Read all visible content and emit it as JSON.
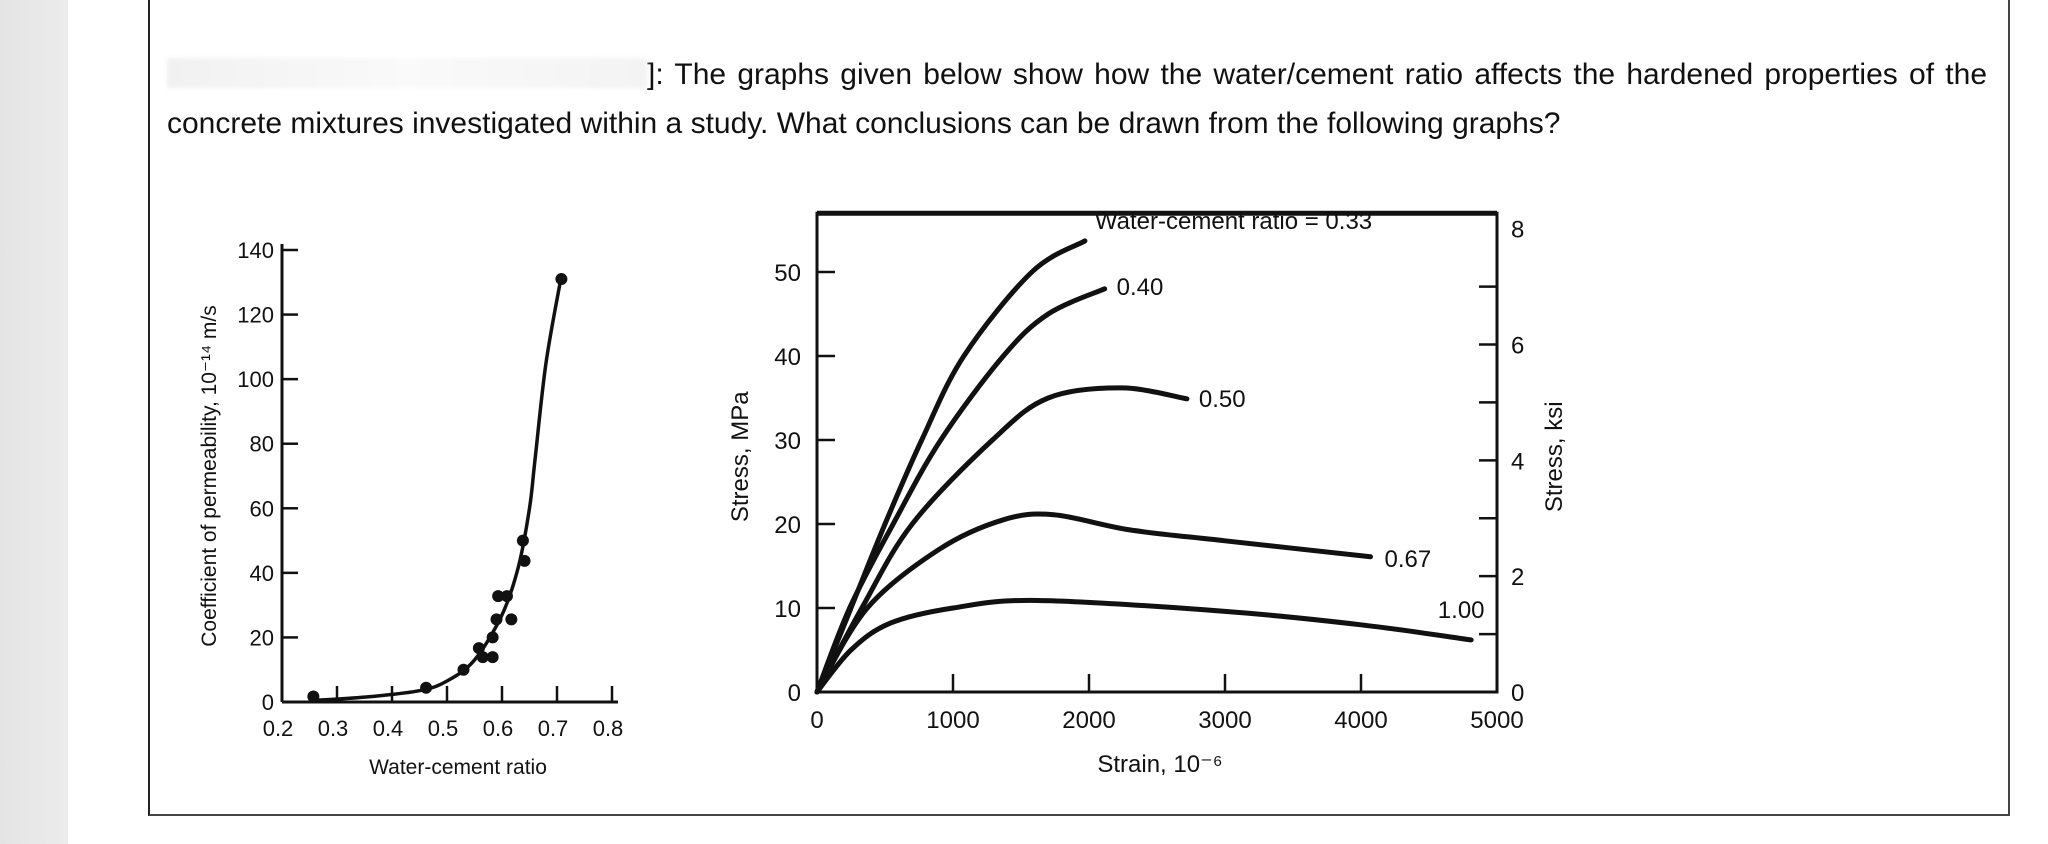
{
  "question": {
    "label_redacted": true,
    "text_line": "]: The graphs given below show how the water/cement ratio affects the hardened properties of the concrete mixtures investigated within a study. What conclusions can be drawn from the following graphs?"
  },
  "chart_data": [
    {
      "type": "scatter",
      "title": "",
      "xlabel": "Water-cement ratio",
      "ylabel": "Coefficient of permeability, 10⁻¹⁴ m/s",
      "xlim": [
        0.2,
        0.8
      ],
      "ylim": [
        0,
        140
      ],
      "x_ticks": [
        "0.2",
        "0.3",
        "0.4",
        "0.5",
        "0.6",
        "0.7",
        "0.8"
      ],
      "y_ticks": [
        "0",
        "20",
        "40",
        "60",
        "80",
        "100",
        "120",
        "140"
      ],
      "grid": false,
      "points": [
        [
          0.257,
          1.7
        ],
        [
          0.462,
          4.4
        ],
        [
          0.53,
          10
        ],
        [
          0.558,
          16.7
        ],
        [
          0.565,
          13.9
        ],
        [
          0.583,
          13.9
        ],
        [
          0.583,
          20
        ],
        [
          0.59,
          25.6
        ],
        [
          0.593,
          32.8
        ],
        [
          0.609,
          32.8
        ],
        [
          0.617,
          25.6
        ],
        [
          0.638,
          50
        ],
        [
          0.641,
          43.7
        ],
        [
          0.708,
          131
        ]
      ],
      "fit_curve": [
        [
          0.257,
          0.5
        ],
        [
          0.35,
          1.5
        ],
        [
          0.45,
          3.5
        ],
        [
          0.5,
          6.5
        ],
        [
          0.55,
          13
        ],
        [
          0.6,
          27
        ],
        [
          0.63,
          42
        ],
        [
          0.65,
          60
        ],
        [
          0.66,
          75
        ],
        [
          0.68,
          105
        ],
        [
          0.708,
          132
        ]
      ]
    },
    {
      "type": "line",
      "title": "",
      "xlabel": "Strain, 10⁻⁶",
      "ylabel": "Stress, MPa",
      "ylabel_right": "Stress, ksi",
      "xlim": [
        0,
        5000
      ],
      "ylim": [
        0,
        57
      ],
      "ylim_right": [
        0,
        8
      ],
      "x_ticks": [
        "0",
        "1000",
        "2000",
        "3000",
        "4000",
        "5000"
      ],
      "y_ticks": [
        "0",
        "10",
        "20",
        "30",
        "40",
        "50"
      ],
      "y_ticks_right": [
        "0",
        "2",
        "4",
        "6",
        "8"
      ],
      "grid": false,
      "series": [
        {
          "name": "Water-cement ratio = 0.33",
          "points": [
            [
              0,
              0
            ],
            [
              250,
              10
            ],
            [
              500,
              20
            ],
            [
              770,
              30
            ],
            [
              1080,
              40
            ],
            [
              1580,
              50
            ],
            [
              1970,
              53.7
            ]
          ]
        },
        {
          "name": "0.40",
          "points": [
            [
              0,
              0
            ],
            [
              240,
              10
            ],
            [
              560,
              20
            ],
            [
              910,
              30
            ],
            [
              1370,
              40
            ],
            [
              1700,
              45
            ],
            [
              2115,
              48
            ]
          ]
        },
        {
          "name": "0.50",
          "points": [
            [
              0,
              0
            ],
            [
              330,
              10
            ],
            [
              700,
              20
            ],
            [
              1290,
              30
            ],
            [
              1700,
              35
            ],
            [
              2240,
              36.2
            ],
            [
              2720,
              34.9
            ]
          ]
        },
        {
          "name": "0.67",
          "points": [
            [
              0,
              0
            ],
            [
              370,
              10
            ],
            [
              900,
              17
            ],
            [
              1370,
              20.5
            ],
            [
              1740,
              21.1
            ],
            [
              2300,
              19.3
            ],
            [
              3000,
              18
            ],
            [
              4070,
              16.1
            ]
          ]
        },
        {
          "name": "1.00",
          "points": [
            [
              0,
              0
            ],
            [
              250,
              5
            ],
            [
              540,
              8.2
            ],
            [
              1000,
              10
            ],
            [
              1620,
              10.9
            ],
            [
              3000,
              9.6
            ],
            [
              4000,
              8
            ],
            [
              4810,
              6.2
            ]
          ]
        }
      ]
    }
  ]
}
